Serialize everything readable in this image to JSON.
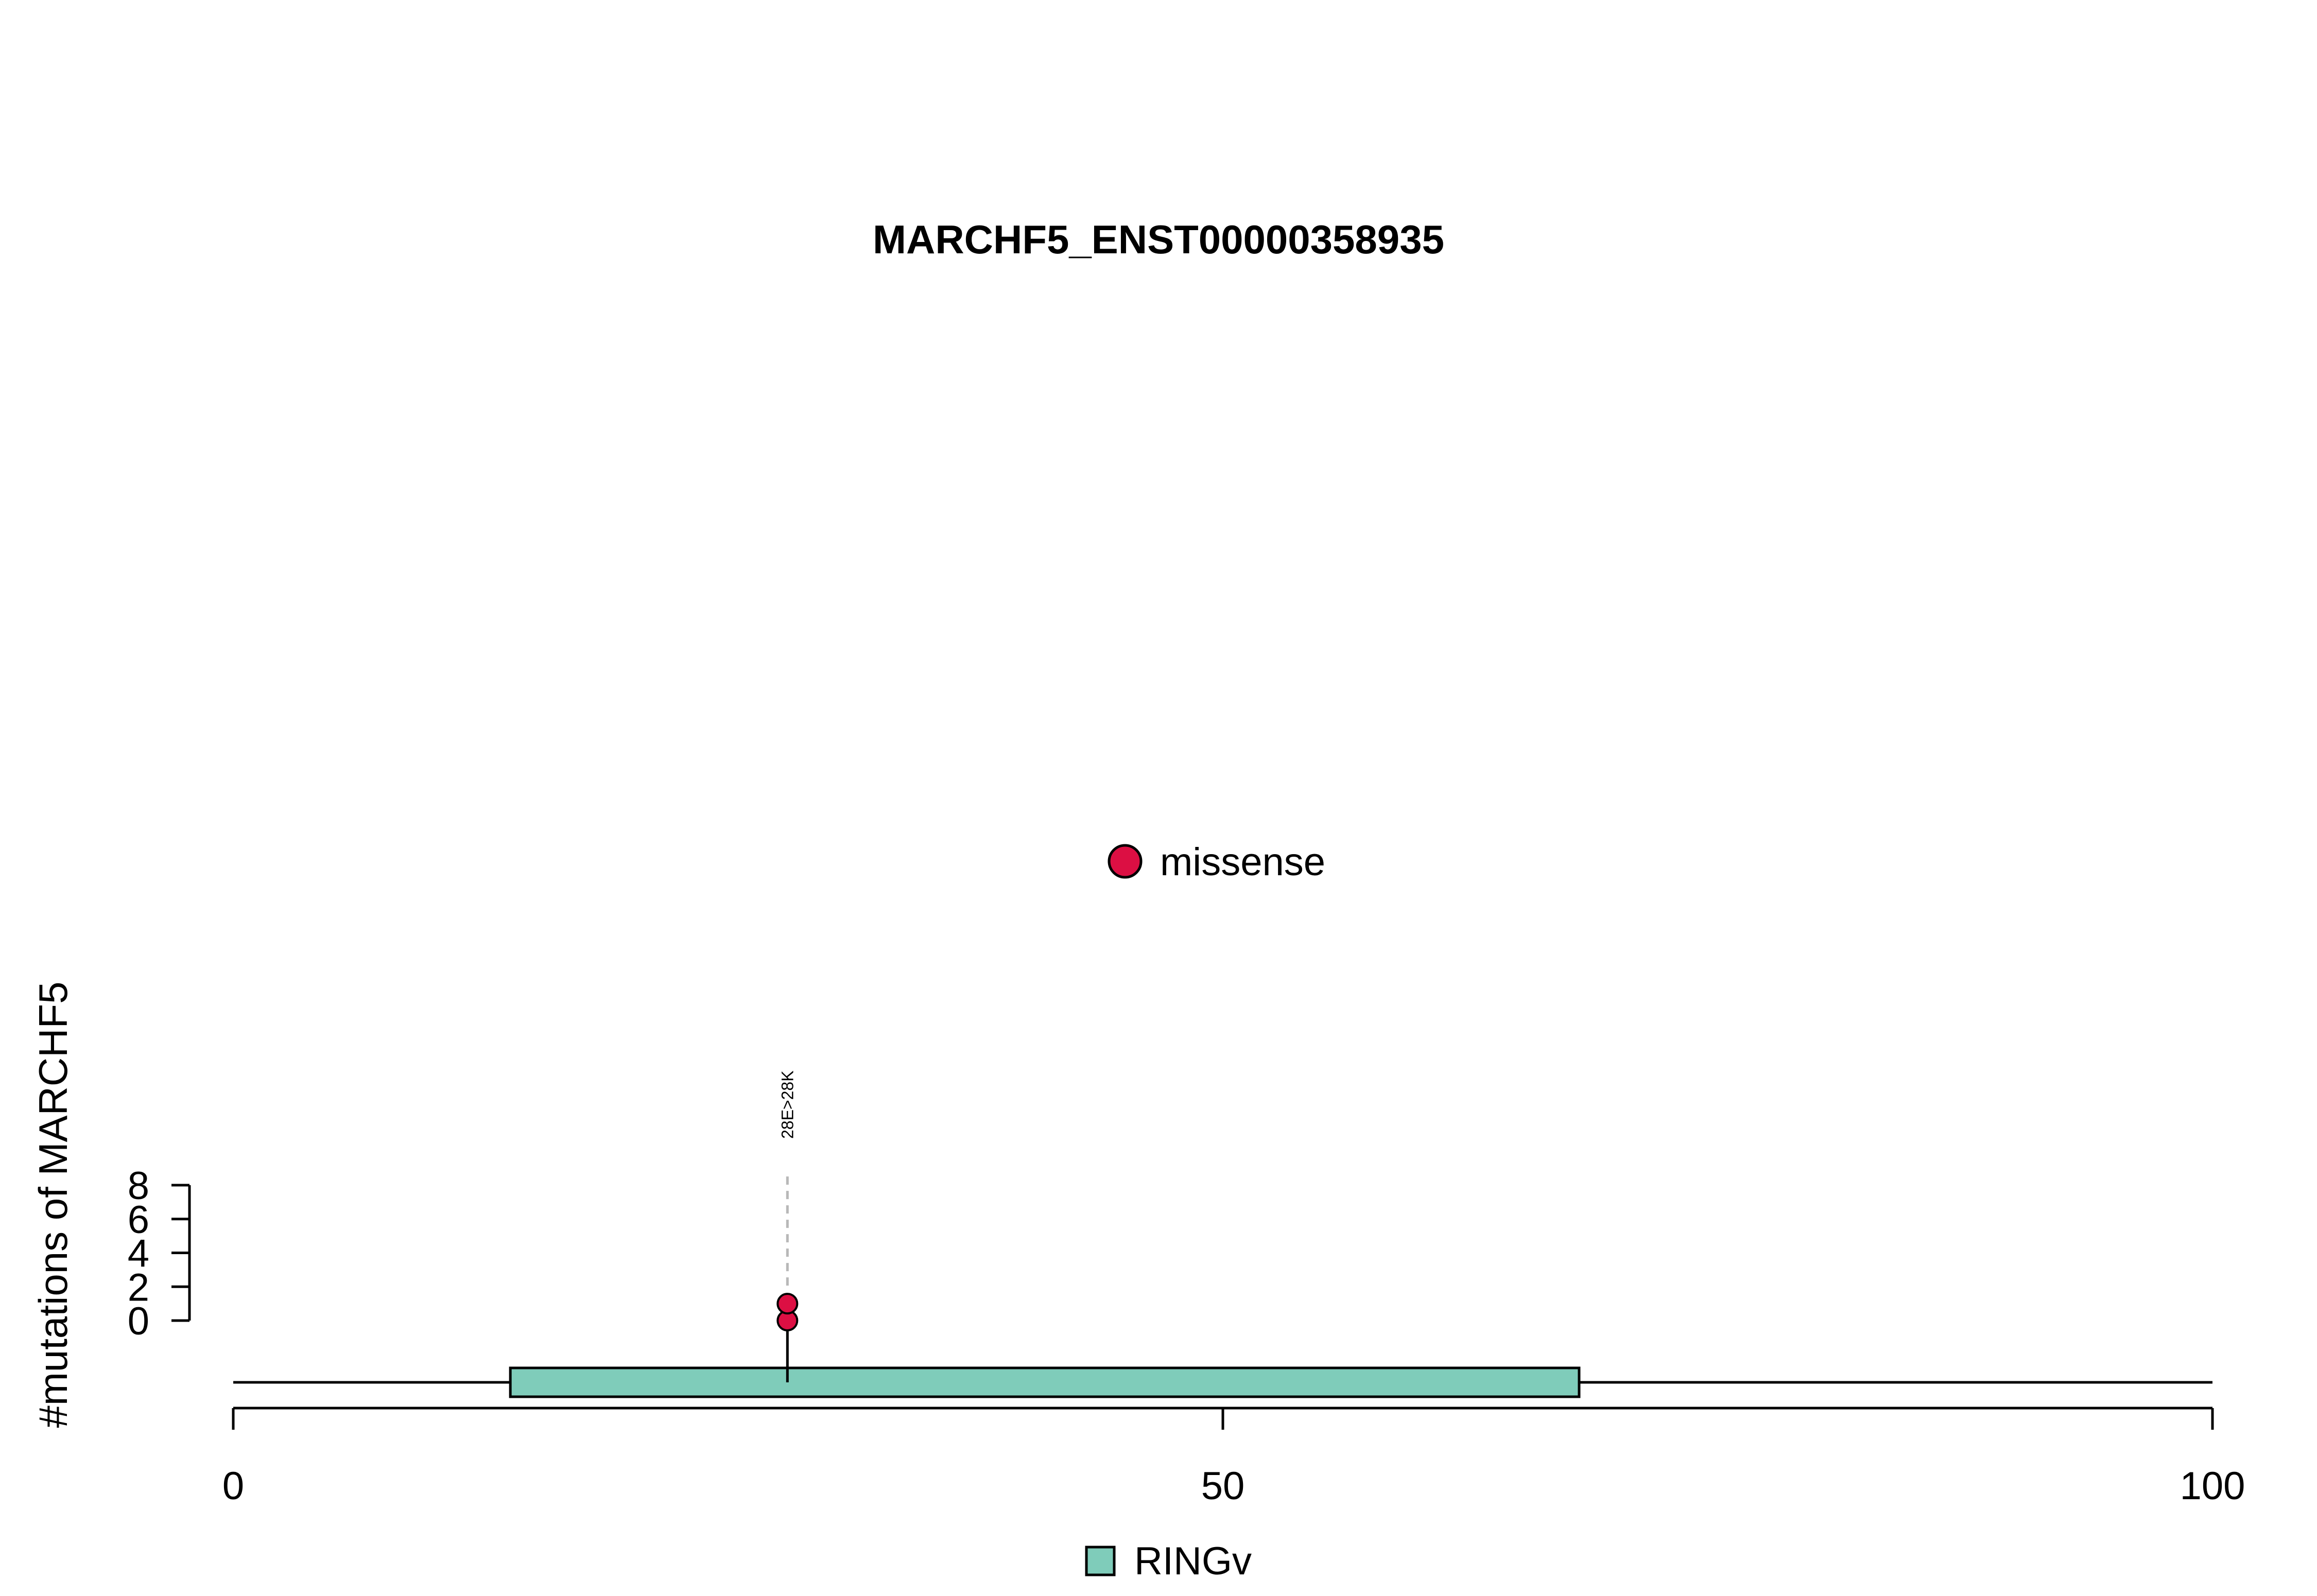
{
  "chart_data": {
    "type": "lollipop",
    "title": "MARCHF5_ENST00000358935",
    "ylabel": "#mutations of MARCHF5",
    "xlim": [
      0,
      100
    ],
    "x_ticks": [
      0,
      50,
      100
    ],
    "y_ticks": [
      0,
      2,
      4,
      6,
      8
    ],
    "ylim": [
      0,
      8
    ],
    "protein_length": 100,
    "domains": [
      {
        "name": "RINGv",
        "start": 14,
        "end": 68,
        "color": "#7fccba"
      }
    ],
    "mutations": [
      {
        "position": 28,
        "label": "28E>28K",
        "type": "missense",
        "count": 2,
        "color": "#dc0f43"
      }
    ],
    "mutation_legend": [
      {
        "label": "missense",
        "color": "#dc0f43"
      }
    ],
    "domain_legend": [
      {
        "label": "RINGv",
        "color": "#7fccba"
      }
    ]
  }
}
